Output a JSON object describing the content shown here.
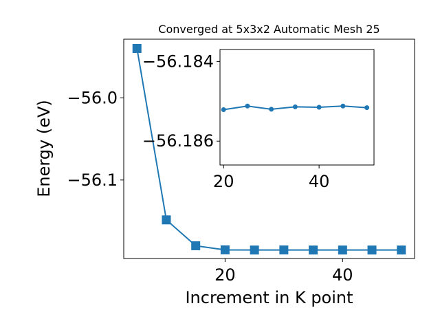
{
  "chart_data": [
    {
      "type": "line",
      "title": "Converged at 5x3x2 Automatic Mesh 25",
      "xlabel": "Increment in K point",
      "ylabel": "Energy (eV)",
      "xlim": [
        2.75,
        52.25
      ],
      "ylim": [
        -56.1955,
        -55.9287
      ],
      "xticks": [
        20,
        40
      ],
      "xtick_labels": [
        "20",
        "40"
      ],
      "yticks": [
        -56.1,
        -56.0
      ],
      "ytick_labels": [
        "−56.1",
        "−56.0"
      ],
      "marker": "square",
      "color": "#1f77b4",
      "x": [
        5,
        10,
        15,
        20,
        25,
        30,
        35,
        40,
        45,
        50
      ],
      "y": [
        -55.94,
        -56.1485,
        -56.18,
        -56.185,
        -56.1852,
        -56.1851,
        -56.1852,
        -56.1852,
        -56.1852,
        -56.1852
      ]
    },
    {
      "type": "line",
      "inset": true,
      "xlim": [
        19.25,
        51.5
      ],
      "ylim": [
        -56.1866,
        -56.1837
      ],
      "xticks": [
        20,
        40
      ],
      "xtick_labels": [
        "20",
        "40"
      ],
      "yticks": [
        -56.186,
        -56.184
      ],
      "ytick_labels": [
        "−56.186",
        "−56.184"
      ],
      "marker": "circle",
      "color": "#1f77b4",
      "x": [
        20,
        25,
        30,
        35,
        40,
        45,
        50
      ],
      "y": [
        -56.18521,
        -56.18512,
        -56.1852,
        -56.18514,
        -56.18515,
        -56.18512,
        -56.18516
      ]
    }
  ]
}
